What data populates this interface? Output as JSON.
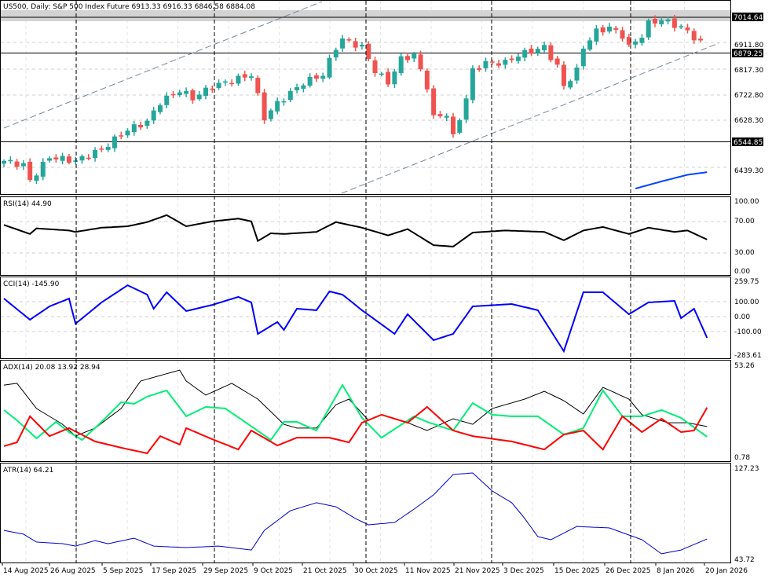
{
  "header": {
    "symbol": "US500, Daily:",
    "description": "S&P 500  Index Future",
    "ohlc": "6913.33 6916.33 6846.58 6884.08"
  },
  "colors": {
    "bull": "#26a69a",
    "bear": "#ef5350",
    "rsi": "#000000",
    "cci": "#0000ff",
    "adx": "#000000",
    "plus_di": "#00ee76",
    "minus_di": "#ff0000",
    "atr": "#0000cc",
    "ma": "#0044ff"
  },
  "price_axis": {
    "labels": [
      "6911.80",
      "6817.30",
      "6722.80",
      "6628.30",
      "6439.30"
    ],
    "highlighted": [
      "7014.64",
      "6879.25",
      "6544.85"
    ]
  },
  "indicators": {
    "rsi": {
      "label": "RSI(14) 44.90",
      "axis": [
        "100.00",
        "70.00",
        "30.00",
        "0.00"
      ]
    },
    "cci": {
      "label": "CCI(14) -145.90",
      "axis": [
        "259.75",
        "100.00",
        "0.00",
        "-100.00",
        "-283.61"
      ]
    },
    "adx": {
      "label": "ADX(14) 20.08 13.92 28.94",
      "axis": [
        "53.26",
        "0.78"
      ]
    },
    "atr": {
      "label": "ATR(14) 64.21",
      "axis": [
        "127.23",
        "43.72"
      ]
    }
  },
  "time_axis": [
    "14 Aug 2025",
    "26 Aug 2025",
    "5 Sep 2025",
    "17 Sep 2025",
    "29 Sep 2025",
    "9 Oct 2025",
    "21 Oct 2025",
    "30 Oct 2025",
    "11 Nov 2025",
    "21 Nov 2025",
    "3 Dec 2025",
    "15 Dec 2025",
    "26 Dec 2025",
    "8 Jan 2026",
    "20 Jan 2026"
  ],
  "chart_data": {
    "type": "candlestick",
    "bars": 108,
    "close_keypoints": [
      [
        0,
        6472
      ],
      [
        3,
        6457
      ],
      [
        4,
        6398
      ],
      [
        7,
        6487
      ],
      [
        11,
        6472
      ],
      [
        15,
        6516
      ],
      [
        19,
        6590
      ],
      [
        22,
        6620
      ],
      [
        24,
        6694
      ],
      [
        27,
        6739
      ],
      [
        29,
        6709
      ],
      [
        32,
        6754
      ],
      [
        36,
        6783
      ],
      [
        38,
        6798
      ],
      [
        40,
        6635
      ],
      [
        42,
        6690
      ],
      [
        46,
        6768
      ],
      [
        49,
        6798
      ],
      [
        51,
        6902
      ],
      [
        52,
        6932
      ],
      [
        55,
        6902
      ],
      [
        57,
        6813
      ],
      [
        59,
        6768
      ],
      [
        61,
        6857
      ],
      [
        63,
        6872
      ],
      [
        65,
        6754
      ],
      [
        66,
        6635
      ],
      [
        68,
        6650
      ],
      [
        69,
        6561
      ],
      [
        71,
        6709
      ],
      [
        72,
        6813
      ],
      [
        74,
        6843
      ],
      [
        77,
        6843
      ],
      [
        79,
        6872
      ],
      [
        83,
        6902
      ],
      [
        85,
        6828
      ],
      [
        86,
        6754
      ],
      [
        88,
        6813
      ],
      [
        89,
        6902
      ],
      [
        91,
        6961
      ],
      [
        93,
        6976
      ],
      [
        95,
        6946
      ],
      [
        96,
        6902
      ],
      [
        98,
        6946
      ],
      [
        99,
        6991
      ],
      [
        101,
        7006
      ],
      [
        104,
        6976
      ],
      [
        105,
        6961
      ],
      [
        107,
        6917
      ],
      [
        108,
        6884
      ]
    ],
    "price_range": [
      6360,
      7060
    ],
    "rsi": [
      [
        0,
        66
      ],
      [
        4,
        53
      ],
      [
        5,
        61
      ],
      [
        10,
        58
      ],
      [
        11,
        56
      ],
      [
        15,
        62
      ],
      [
        19,
        64
      ],
      [
        22,
        70
      ],
      [
        25,
        80
      ],
      [
        28,
        64
      ],
      [
        32,
        71
      ],
      [
        36,
        75
      ],
      [
        38,
        71
      ],
      [
        39,
        43
      ],
      [
        41,
        54
      ],
      [
        43,
        53
      ],
      [
        48,
        56
      ],
      [
        51,
        70
      ],
      [
        55,
        62
      ],
      [
        59,
        51
      ],
      [
        62,
        60
      ],
      [
        66,
        37
      ],
      [
        69,
        35
      ],
      [
        72,
        55
      ],
      [
        77,
        58
      ],
      [
        83,
        56
      ],
      [
        86,
        44
      ],
      [
        89,
        58
      ],
      [
        92,
        63
      ],
      [
        96,
        53
      ],
      [
        99,
        62
      ],
      [
        103,
        56
      ],
      [
        105,
        58
      ],
      [
        108,
        45
      ]
    ],
    "rsi_range": [
      0,
      100
    ],
    "cci": [
      [
        0,
        128
      ],
      [
        4,
        -26
      ],
      [
        7,
        71
      ],
      [
        10,
        128
      ],
      [
        11,
        -55
      ],
      [
        15,
        100
      ],
      [
        19,
        225
      ],
      [
        22,
        157
      ],
      [
        23,
        54
      ],
      [
        25,
        174
      ],
      [
        28,
        37
      ],
      [
        32,
        82
      ],
      [
        36,
        140
      ],
      [
        38,
        100
      ],
      [
        39,
        -129
      ],
      [
        42,
        -43
      ],
      [
        43,
        -100
      ],
      [
        45,
        54
      ],
      [
        48,
        43
      ],
      [
        50,
        180
      ],
      [
        52,
        157
      ],
      [
        55,
        43
      ],
      [
        60,
        -129
      ],
      [
        62,
        14
      ],
      [
        66,
        -175
      ],
      [
        69,
        -129
      ],
      [
        72,
        71
      ],
      [
        78,
        88
      ],
      [
        82,
        43
      ],
      [
        86,
        -255
      ],
      [
        89,
        174
      ],
      [
        92,
        174
      ],
      [
        96,
        14
      ],
      [
        99,
        100
      ],
      [
        103,
        111
      ],
      [
        104,
        -15
      ],
      [
        106,
        54
      ],
      [
        108,
        -158
      ]
    ],
    "cci_range": [
      -283.61,
      259.75
    ],
    "adx": [
      [
        0,
        41.9
      ],
      [
        2,
        42.9
      ],
      [
        5,
        28.4
      ],
      [
        9,
        19.3
      ],
      [
        11,
        12.5
      ],
      [
        14,
        17.1
      ],
      [
        18,
        28.4
      ],
      [
        21,
        44.2
      ],
      [
        24,
        47.4
      ],
      [
        27,
        50.5
      ],
      [
        28,
        44.2
      ],
      [
        31,
        36.1
      ],
      [
        35,
        42.9
      ],
      [
        39,
        33.8
      ],
      [
        43,
        19.3
      ],
      [
        45,
        17.1
      ],
      [
        48,
        17.1
      ],
      [
        51,
        30.6
      ],
      [
        53,
        33.8
      ],
      [
        56,
        21.6
      ],
      [
        58,
        24.8
      ],
      [
        62,
        20.2
      ],
      [
        65,
        15.7
      ],
      [
        69,
        22.5
      ],
      [
        72,
        19.3
      ],
      [
        75,
        28.4
      ],
      [
        80,
        33.8
      ],
      [
        83,
        38.3
      ],
      [
        86,
        32.9
      ],
      [
        89,
        25.2
      ],
      [
        92,
        40.6
      ],
      [
        96,
        33.8
      ],
      [
        98,
        24.8
      ],
      [
        102,
        20.2
      ],
      [
        105,
        20.2
      ],
      [
        108,
        18.0
      ]
    ],
    "plus_di": [
      [
        0,
        27.5
      ],
      [
        2,
        21.6
      ],
      [
        5,
        11.2
      ],
      [
        8,
        20.7
      ],
      [
        10,
        14.8
      ],
      [
        12,
        10.3
      ],
      [
        15,
        20.7
      ],
      [
        18,
        32.0
      ],
      [
        20,
        31.1
      ],
      [
        22,
        35.2
      ],
      [
        25,
        38.8
      ],
      [
        28,
        23.9
      ],
      [
        31,
        29.3
      ],
      [
        34,
        28.4
      ],
      [
        37,
        20.7
      ],
      [
        41,
        10.3
      ],
      [
        43,
        20.7
      ],
      [
        45,
        20.7
      ],
      [
        48,
        15.7
      ],
      [
        52,
        41.9
      ],
      [
        55,
        23.0
      ],
      [
        58,
        11.6
      ],
      [
        63,
        23.9
      ],
      [
        65,
        20.7
      ],
      [
        69,
        15.7
      ],
      [
        72,
        31.5
      ],
      [
        75,
        24.8
      ],
      [
        78,
        23.9
      ],
      [
        82,
        23.9
      ],
      [
        86,
        13.4
      ],
      [
        89,
        17.1
      ],
      [
        92,
        38.8
      ],
      [
        95,
        23.9
      ],
      [
        98,
        23.9
      ],
      [
        101,
        27.5
      ],
      [
        104,
        23.0
      ],
      [
        108,
        12.1
      ]
    ],
    "minus_di": [
      [
        0,
        6.7
      ],
      [
        2,
        8.9
      ],
      [
        4,
        23.9
      ],
      [
        7,
        12.5
      ],
      [
        10,
        17.1
      ],
      [
        14,
        9.4
      ],
      [
        18,
        5.8
      ],
      [
        22,
        2.6
      ],
      [
        24,
        12.5
      ],
      [
        27,
        7.6
      ],
      [
        28,
        17.1
      ],
      [
        32,
        10.7
      ],
      [
        36,
        4.8
      ],
      [
        38,
        15.7
      ],
      [
        42,
        7.1
      ],
      [
        45,
        11.6
      ],
      [
        50,
        11.6
      ],
      [
        53,
        8.9
      ],
      [
        55,
        20.2
      ],
      [
        58,
        24.8
      ],
      [
        62,
        20.2
      ],
      [
        65,
        29.3
      ],
      [
        69,
        15.7
      ],
      [
        72,
        12.5
      ],
      [
        78,
        9.4
      ],
      [
        83,
        4.8
      ],
      [
        86,
        13.4
      ],
      [
        89,
        15.7
      ],
      [
        92,
        4.8
      ],
      [
        95,
        23.9
      ],
      [
        98,
        14.8
      ],
      [
        101,
        22.5
      ],
      [
        104,
        14.8
      ],
      [
        106,
        15.7
      ],
      [
        108,
        28.94
      ]
    ],
    "adx_range": [
      0.78,
      53.26
    ],
    "atr": [
      [
        0,
        70.3
      ],
      [
        3,
        66.8
      ],
      [
        5,
        59.6
      ],
      [
        9,
        58.1
      ],
      [
        11,
        55.9
      ],
      [
        14,
        60.9
      ],
      [
        16,
        58.1
      ],
      [
        20,
        63.1
      ],
      [
        23,
        55.9
      ],
      [
        28,
        54.5
      ],
      [
        33,
        55.9
      ],
      [
        38,
        52.3
      ],
      [
        40,
        70.3
      ],
      [
        44,
        88.3
      ],
      [
        48,
        95.6
      ],
      [
        51,
        91.9
      ],
      [
        54,
        81.1
      ],
      [
        56,
        75.4
      ],
      [
        60,
        77.5
      ],
      [
        63,
        89.8
      ],
      [
        66,
        102.8
      ],
      [
        69,
        121.5
      ],
      [
        72,
        122.9
      ],
      [
        75,
        106.4
      ],
      [
        78,
        95.6
      ],
      [
        80,
        81.1
      ],
      [
        82,
        64.6
      ],
      [
        84,
        61.7
      ],
      [
        88,
        73.9
      ],
      [
        93,
        72.5
      ],
      [
        98,
        61.7
      ],
      [
        101,
        48.8
      ],
      [
        104,
        52.3
      ],
      [
        108,
        62.4
      ]
    ],
    "atr_range": [
      43.72,
      127.23
    ],
    "ma_keypoints": [
      [
        97,
        6368
      ],
      [
        101,
        6395
      ],
      [
        105,
        6420
      ],
      [
        108,
        6430
      ]
    ]
  }
}
